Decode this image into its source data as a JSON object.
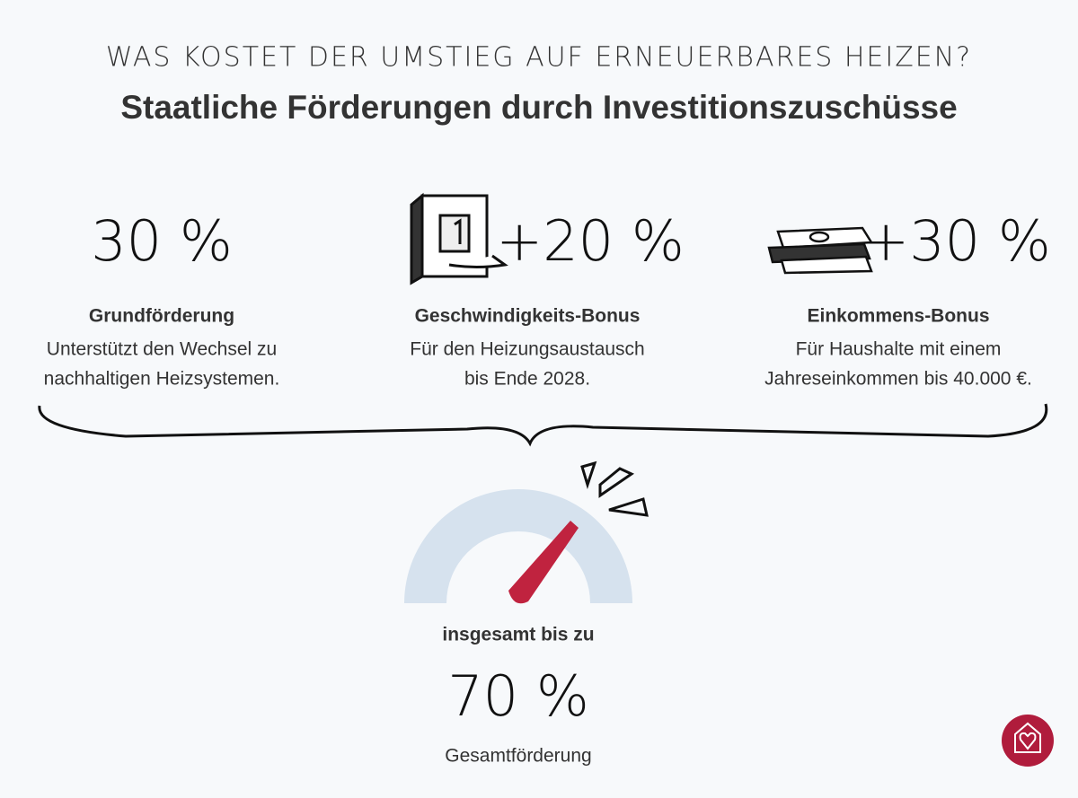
{
  "header": {
    "kicker": "WAS KOSTET DER UMSTIEG AUF ERNEUERBARES HEIZEN?",
    "title": "Staatliche Förderungen durch Investitionszuschüsse"
  },
  "items": [
    {
      "value": "30 %",
      "label": "Grundförderung",
      "description": [
        "Unterstützt den Wechsel zu",
        "nachhaltigen Heizsystemen."
      ]
    },
    {
      "value": "+20 %",
      "label": "Geschwindigkeits-Bonus",
      "description": [
        "Für den Heizungsaustausch",
        "bis Ende 2028."
      ]
    },
    {
      "value": "+30 %",
      "label": "Einkommens-Bonus",
      "description": [
        "Für Haushalte mit einem",
        "Jahreseinkommen bis 40.000 €."
      ]
    }
  ],
  "summary": {
    "intro": "insgesamt bis zu",
    "value": "70 %",
    "caption": "Gesamtförderung"
  }
}
